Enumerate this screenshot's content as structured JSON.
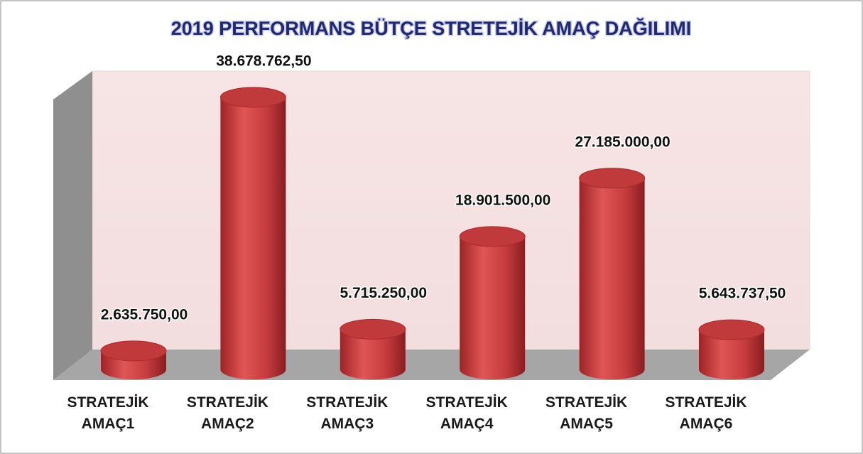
{
  "chart_data": {
    "type": "bar3d-cylinder",
    "title": "2019 PERFORMANS BÜTÇE STRETEJİK AMAÇ DAĞILIMI",
    "categories": [
      "STRATEJİK AMAÇ1",
      "STRATEJİK AMAÇ2",
      "STRATEJİK AMAÇ3",
      "STRATEJİK AMAÇ4",
      "STRATEJİK AMAÇ5",
      "STRATEJİK AMAÇ6"
    ],
    "values": [
      2635750,
      38678762.5,
      5715250,
      18901500,
      27185000,
      5643737.5
    ],
    "value_labels": [
      "2.635.750,00",
      "38.678.762,50",
      "5.715.250,00",
      "18.901.500,00",
      "27.185.000,00",
      "5.643.737,50"
    ],
    "color": "#c0393b"
  }
}
